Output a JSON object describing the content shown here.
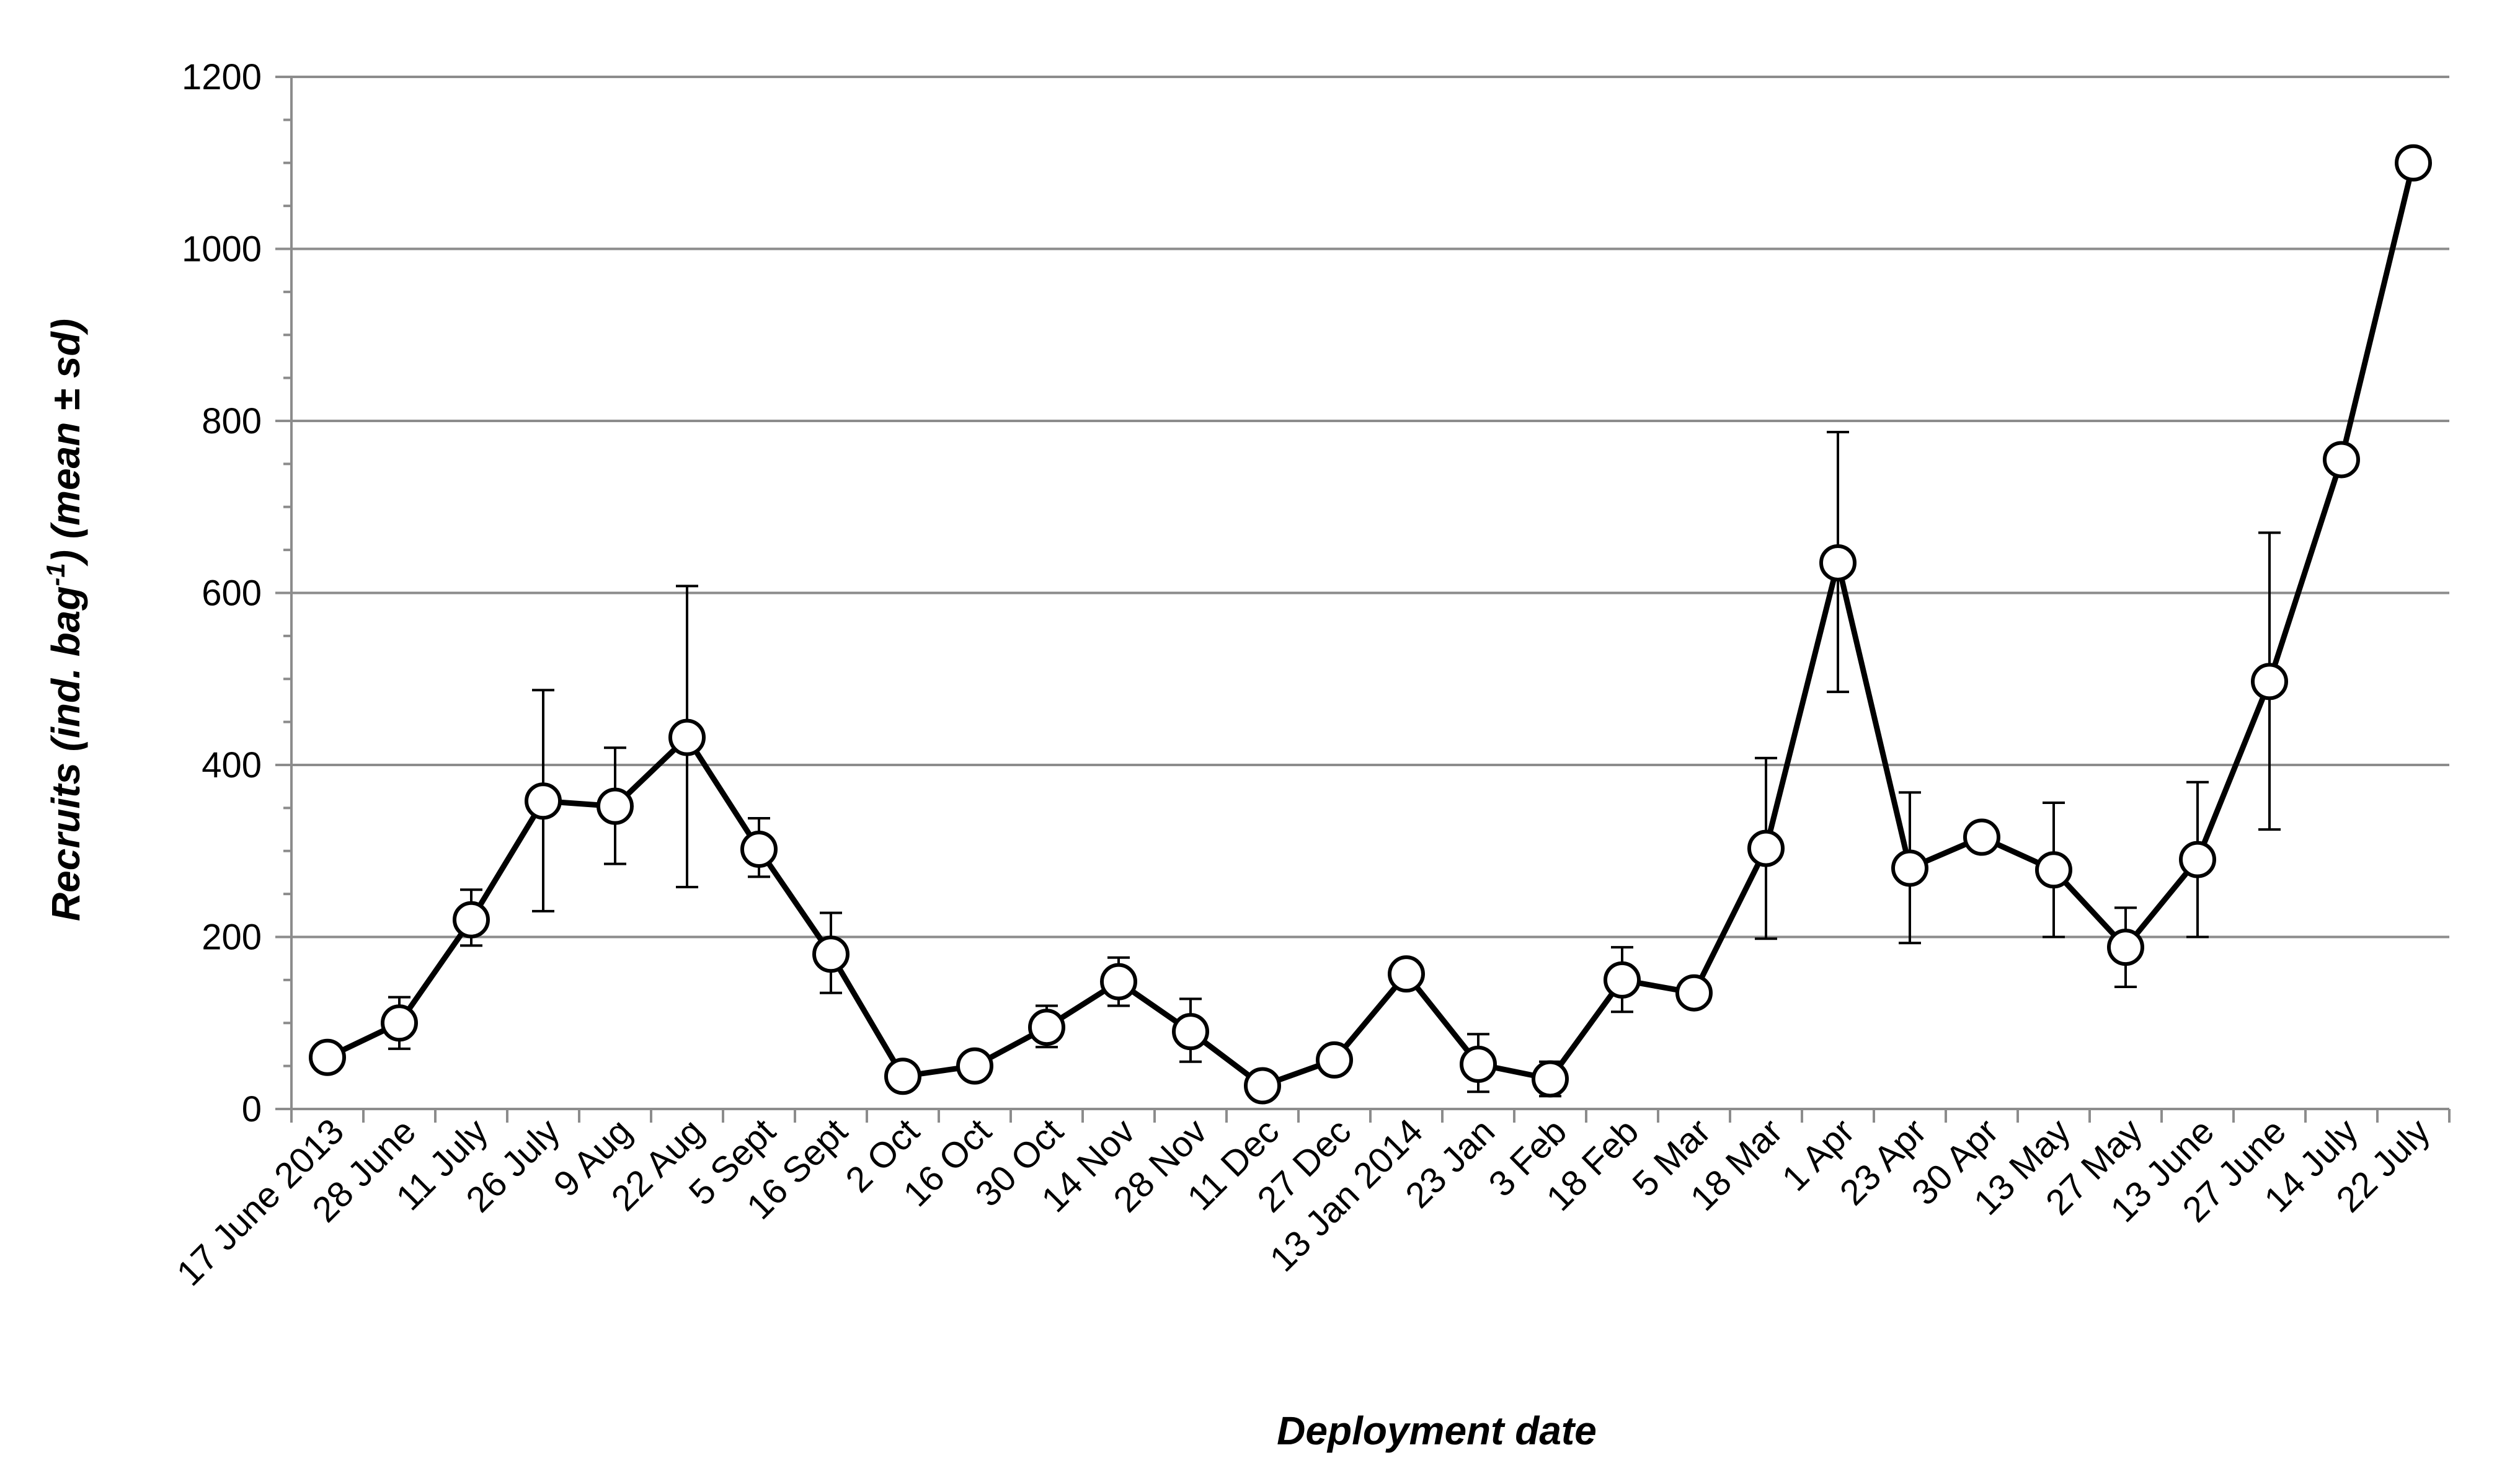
{
  "chart_data": {
    "type": "line",
    "xlabel": "Deployment date",
    "ylabel_main": "Recruits (ind. bag",
    "ylabel_sup": "-1",
    "ylabel_tail": ") (mean ± sd)",
    "ylim": [
      0,
      1200
    ],
    "yticks": [
      0,
      200,
      400,
      600,
      800,
      1000,
      1200
    ],
    "grid": true,
    "legend": "none",
    "line_color": "#000000",
    "marker_fill": "#ffffff",
    "grid_color": "#8c8c8c",
    "categories": [
      "17 June 2013",
      "28 June",
      "11 July",
      "26 July",
      "9 Aug",
      "22 Aug",
      "5 Sept",
      "16 Sept",
      "2 Oct",
      "16 Oct",
      "30 Oct",
      "14 Nov",
      "28 Nov",
      "11 Dec",
      "27 Dec",
      "13 Jan 2014",
      "23 Jan",
      "3 Feb",
      "18 Feb",
      "5 Mar",
      "18 Mar",
      "1 Apr",
      "23 Apr",
      "30 Apr",
      "13 May",
      "27 May",
      "13 June",
      "27 June",
      "14 July",
      "22 July"
    ],
    "series": [
      {
        "values": [
          60,
          100,
          220,
          358,
          352,
          432,
          302,
          180,
          38,
          50,
          95,
          148,
          90,
          27,
          57,
          157,
          52,
          35,
          150,
          135,
          303,
          635,
          280,
          316,
          278,
          188,
          290,
          497,
          755,
          1100
        ],
        "error_lower": [
          null,
          70,
          190,
          230,
          285,
          258,
          270,
          135,
          null,
          null,
          72,
          120,
          55,
          null,
          null,
          null,
          20,
          15,
          113,
          null,
          198,
          485,
          193,
          300,
          200,
          142,
          200,
          325,
          null,
          null
        ],
        "error_upper": [
          null,
          130,
          255,
          487,
          420,
          608,
          338,
          228,
          null,
          null,
          120,
          176,
          128,
          null,
          null,
          null,
          87,
          55,
          188,
          null,
          408,
          787,
          368,
          332,
          356,
          234,
          380,
          670,
          null,
          null
        ]
      }
    ]
  }
}
